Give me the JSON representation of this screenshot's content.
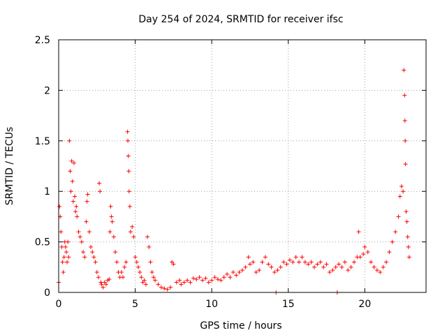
{
  "chart_data": {
    "type": "scatter",
    "title": "Day 254 of 2024, SRMTID for receiver ifsc",
    "xlabel": "GPS time / hours",
    "ylabel": "SRMTID / TECUs",
    "xlim": [
      0,
      24
    ],
    "ylim": [
      0,
      2.5
    ],
    "xticks": [
      {
        "value": 0,
        "label": "0"
      },
      {
        "value": 5,
        "label": "5"
      },
      {
        "value": 10,
        "label": "10"
      },
      {
        "value": 15,
        "label": "15"
      },
      {
        "value": 20,
        "label": "20"
      }
    ],
    "yticks": [
      {
        "value": 0,
        "label": "0"
      },
      {
        "value": 0.5,
        "label": "0.5"
      },
      {
        "value": 1,
        "label": "1"
      },
      {
        "value": 1.5,
        "label": "1.5"
      },
      {
        "value": 2,
        "label": "2"
      },
      {
        "value": 2.5,
        "label": "2.5"
      }
    ],
    "grid": true,
    "marker": "+",
    "color": "#ff0000",
    "series": [
      {
        "name": "SRMTID",
        "points": [
          [
            0.0,
            0.1
          ],
          [
            0.05,
            0.85
          ],
          [
            0.1,
            0.75
          ],
          [
            0.15,
            0.6
          ],
          [
            0.2,
            0.45
          ],
          [
            0.25,
            0.3
          ],
          [
            0.3,
            0.2
          ],
          [
            0.35,
            0.35
          ],
          [
            0.4,
            0.5
          ],
          [
            0.45,
            0.45
          ],
          [
            0.5,
            0.4
          ],
          [
            0.55,
            0.3
          ],
          [
            0.6,
            0.5
          ],
          [
            0.65,
            0.35
          ],
          [
            0.7,
            1.5
          ],
          [
            0.75,
            1.2
          ],
          [
            0.8,
            1.0
          ],
          [
            0.85,
            1.3
          ],
          [
            0.9,
            1.1
          ],
          [
            0.95,
            0.9
          ],
          [
            1.0,
            1.28
          ],
          [
            1.05,
            0.95
          ],
          [
            1.1,
            0.8
          ],
          [
            1.15,
            0.85
          ],
          [
            1.2,
            0.75
          ],
          [
            1.3,
            0.6
          ],
          [
            1.4,
            0.55
          ],
          [
            1.5,
            0.5
          ],
          [
            1.6,
            0.4
          ],
          [
            1.7,
            0.35
          ],
          [
            1.8,
            0.7
          ],
          [
            1.85,
            0.9
          ],
          [
            1.9,
            0.97
          ],
          [
            2.0,
            0.6
          ],
          [
            2.1,
            0.45
          ],
          [
            2.2,
            0.4
          ],
          [
            2.3,
            0.35
          ],
          [
            2.4,
            0.3
          ],
          [
            2.5,
            0.2
          ],
          [
            2.6,
            0.15
          ],
          [
            2.65,
            1.08
          ],
          [
            2.7,
            1.0
          ],
          [
            2.75,
            0.1
          ],
          [
            2.8,
            0.08
          ],
          [
            2.9,
            0.05
          ],
          [
            3.0,
            0.1
          ],
          [
            3.1,
            0.08
          ],
          [
            3.2,
            0.12
          ],
          [
            3.3,
            0.13
          ],
          [
            3.35,
            0.6
          ],
          [
            3.4,
            0.85
          ],
          [
            3.45,
            0.75
          ],
          [
            3.5,
            0.7
          ],
          [
            3.6,
            0.55
          ],
          [
            3.7,
            0.4
          ],
          [
            3.8,
            0.3
          ],
          [
            3.9,
            0.2
          ],
          [
            4.0,
            0.15
          ],
          [
            4.1,
            0.2
          ],
          [
            4.2,
            0.15
          ],
          [
            4.3,
            0.25
          ],
          [
            4.4,
            0.3
          ],
          [
            4.5,
            1.59
          ],
          [
            4.52,
            1.5
          ],
          [
            4.55,
            1.35
          ],
          [
            4.58,
            1.2
          ],
          [
            4.6,
            1.0
          ],
          [
            4.65,
            0.85
          ],
          [
            4.7,
            0.6
          ],
          [
            4.8,
            0.65
          ],
          [
            4.9,
            0.55
          ],
          [
            5.0,
            0.35
          ],
          [
            5.1,
            0.3
          ],
          [
            5.2,
            0.25
          ],
          [
            5.3,
            0.2
          ],
          [
            5.4,
            0.15
          ],
          [
            5.5,
            0.1
          ],
          [
            5.6,
            0.12
          ],
          [
            5.7,
            0.08
          ],
          [
            5.8,
            0.55
          ],
          [
            5.9,
            0.45
          ],
          [
            6.0,
            0.3
          ],
          [
            6.1,
            0.2
          ],
          [
            6.2,
            0.15
          ],
          [
            6.3,
            0.12
          ],
          [
            6.5,
            0.08
          ],
          [
            6.7,
            0.05
          ],
          [
            6.9,
            0.04
          ],
          [
            7.1,
            0.03
          ],
          [
            7.3,
            0.05
          ],
          [
            7.4,
            0.3
          ],
          [
            7.5,
            0.28
          ],
          [
            7.7,
            0.1
          ],
          [
            7.9,
            0.12
          ],
          [
            8.0,
            0.08
          ],
          [
            8.2,
            0.1
          ],
          [
            8.4,
            0.12
          ],
          [
            8.6,
            0.1
          ],
          [
            8.8,
            0.14
          ],
          [
            9.0,
            0.13
          ],
          [
            9.2,
            0.15
          ],
          [
            9.4,
            0.12
          ],
          [
            9.6,
            0.14
          ],
          [
            9.8,
            0.1
          ],
          [
            10.0,
            0.12
          ],
          [
            10.2,
            0.15
          ],
          [
            10.4,
            0.13
          ],
          [
            10.6,
            0.12
          ],
          [
            10.8,
            0.15
          ],
          [
            11.0,
            0.18
          ],
          [
            11.2,
            0.15
          ],
          [
            11.4,
            0.2
          ],
          [
            11.6,
            0.17
          ],
          [
            11.8,
            0.2
          ],
          [
            12.0,
            0.22
          ],
          [
            12.2,
            0.25
          ],
          [
            12.4,
            0.35
          ],
          [
            12.5,
            0.28
          ],
          [
            12.7,
            0.3
          ],
          [
            12.9,
            0.2
          ],
          [
            13.1,
            0.22
          ],
          [
            13.3,
            0.3
          ],
          [
            13.5,
            0.35
          ],
          [
            13.7,
            0.28
          ],
          [
            13.9,
            0.25
          ],
          [
            14.1,
            0.2
          ],
          [
            14.2,
            0.0
          ],
          [
            14.3,
            0.22
          ],
          [
            14.5,
            0.25
          ],
          [
            14.7,
            0.3
          ],
          [
            14.9,
            0.28
          ],
          [
            15.1,
            0.32
          ],
          [
            15.3,
            0.3
          ],
          [
            15.5,
            0.35
          ],
          [
            15.7,
            0.3
          ],
          [
            15.9,
            0.35
          ],
          [
            16.1,
            0.3
          ],
          [
            16.3,
            0.28
          ],
          [
            16.5,
            0.3
          ],
          [
            16.7,
            0.25
          ],
          [
            16.9,
            0.28
          ],
          [
            17.1,
            0.3
          ],
          [
            17.3,
            0.25
          ],
          [
            17.5,
            0.28
          ],
          [
            17.7,
            0.2
          ],
          [
            17.9,
            0.22
          ],
          [
            18.1,
            0.25
          ],
          [
            18.2,
            0.0
          ],
          [
            18.3,
            0.28
          ],
          [
            18.5,
            0.25
          ],
          [
            18.7,
            0.3
          ],
          [
            18.9,
            0.22
          ],
          [
            19.1,
            0.25
          ],
          [
            19.3,
            0.3
          ],
          [
            19.5,
            0.35
          ],
          [
            19.6,
            0.6
          ],
          [
            19.7,
            0.35
          ],
          [
            19.9,
            0.38
          ],
          [
            20.0,
            0.45
          ],
          [
            20.2,
            0.4
          ],
          [
            20.4,
            0.3
          ],
          [
            20.6,
            0.25
          ],
          [
            20.8,
            0.22
          ],
          [
            21.0,
            0.2
          ],
          [
            21.2,
            0.25
          ],
          [
            21.4,
            0.3
          ],
          [
            21.6,
            0.4
          ],
          [
            21.8,
            0.5
          ],
          [
            22.0,
            0.6
          ],
          [
            22.2,
            0.75
          ],
          [
            22.3,
            0.95
          ],
          [
            22.4,
            1.05
          ],
          [
            22.5,
            1.0
          ],
          [
            22.55,
            2.2
          ],
          [
            22.6,
            1.95
          ],
          [
            22.62,
            1.7
          ],
          [
            22.64,
            1.5
          ],
          [
            22.66,
            1.27
          ],
          [
            22.7,
            0.8
          ],
          [
            22.75,
            0.7
          ],
          [
            22.8,
            0.55
          ],
          [
            22.85,
            0.45
          ],
          [
            22.9,
            0.35
          ]
        ]
      }
    ]
  }
}
